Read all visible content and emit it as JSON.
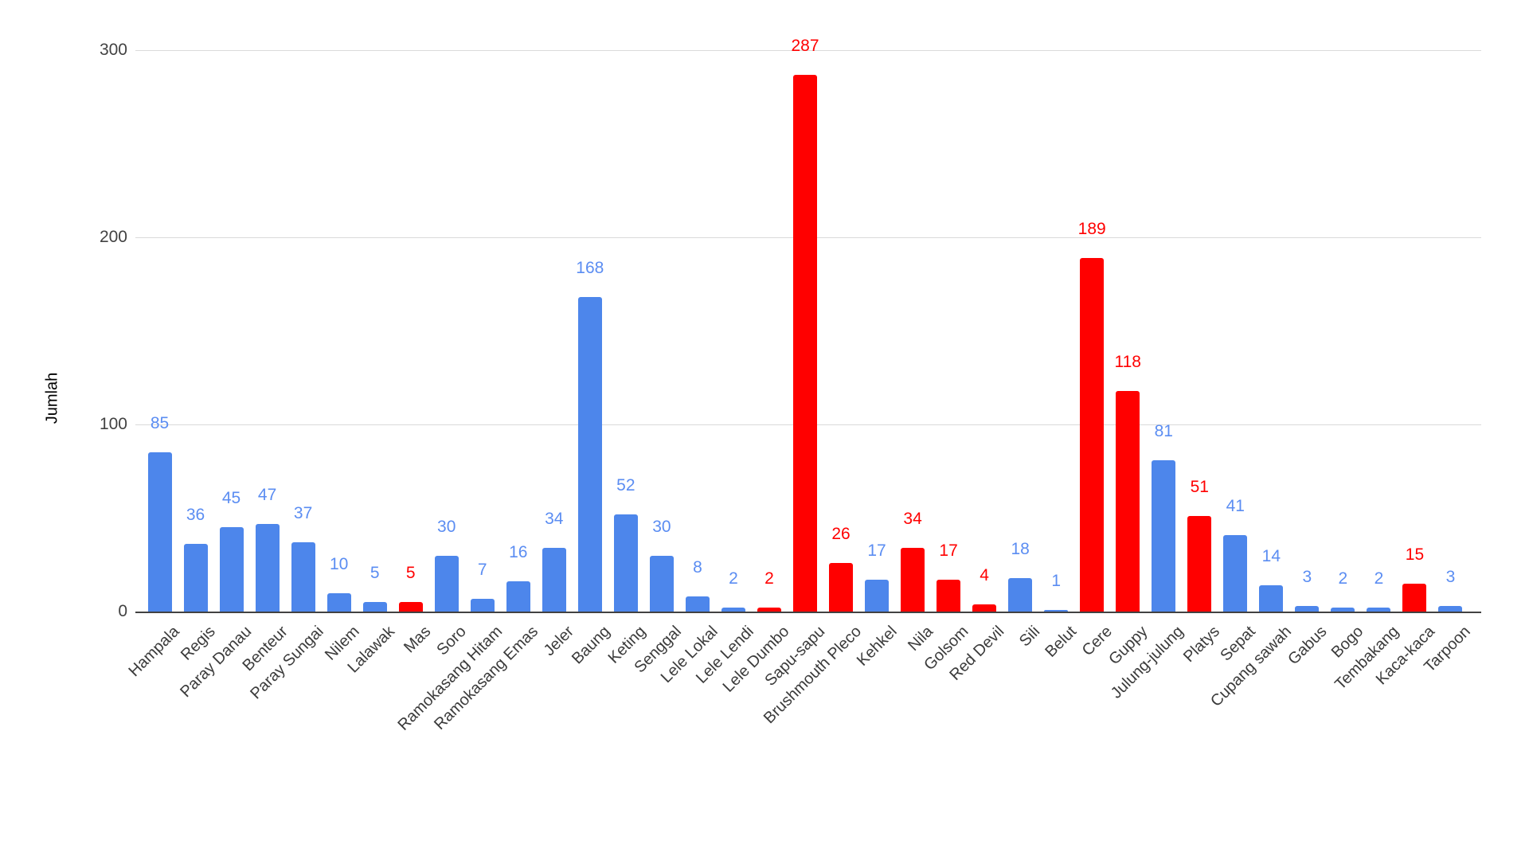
{
  "chart_data": {
    "type": "bar",
    "title": "",
    "xlabel": "",
    "ylabel": "Jumlah",
    "ylim": [
      0,
      300
    ],
    "yticks": [
      0,
      100,
      200,
      300
    ],
    "grid": true,
    "legend": "none",
    "data_labels": true,
    "categories": [
      "Hampala",
      "Regis",
      "Paray Danau",
      "Benteur",
      "Paray Sungai",
      "Nilem",
      "Lalawak",
      "Mas",
      "Soro",
      "Ramokasang Hitam",
      "Ramokasang Emas",
      "Jeler",
      "Baung",
      "Keting",
      "Senggal",
      "Lele Lokal",
      "Lele Lendi",
      "Lele Dumbo",
      "Sapu-sapu",
      "Brushmouth Pleco",
      "Kehkel",
      "Nila",
      "Golsom",
      "Red Devil",
      "Sili",
      "Belut",
      "Cere",
      "Guppy",
      "Julung-julung",
      "Platys",
      "Sepat",
      "Cupang sawah",
      "Gabus",
      "Bogo",
      "Tembakang",
      "Kaca-kaca",
      "Tarpoon"
    ],
    "values": [
      85,
      36,
      45,
      47,
      37,
      10,
      5,
      5,
      30,
      7,
      16,
      34,
      168,
      52,
      30,
      8,
      2,
      2,
      287,
      26,
      17,
      34,
      17,
      4,
      18,
      1,
      189,
      118,
      81,
      51,
      41,
      14,
      3,
      2,
      2,
      15,
      3
    ],
    "bar_colors": [
      "blue",
      "blue",
      "blue",
      "blue",
      "blue",
      "blue",
      "blue",
      "red",
      "blue",
      "blue",
      "blue",
      "blue",
      "blue",
      "blue",
      "blue",
      "blue",
      "blue",
      "red",
      "red",
      "red",
      "blue",
      "red",
      "red",
      "red",
      "blue",
      "blue",
      "red",
      "red",
      "blue",
      "red",
      "blue",
      "blue",
      "blue",
      "blue",
      "blue",
      "red",
      "blue"
    ]
  },
  "colors": {
    "blue_bar": "#4D86EB",
    "blue_label": "#5B8DF2",
    "red_bar": "#FF0000",
    "red_label": "#FF0000",
    "gridline": "#DADADA",
    "axis_line": "#424242",
    "tick_text": "#424242",
    "category_text": "#3B3B3B"
  }
}
